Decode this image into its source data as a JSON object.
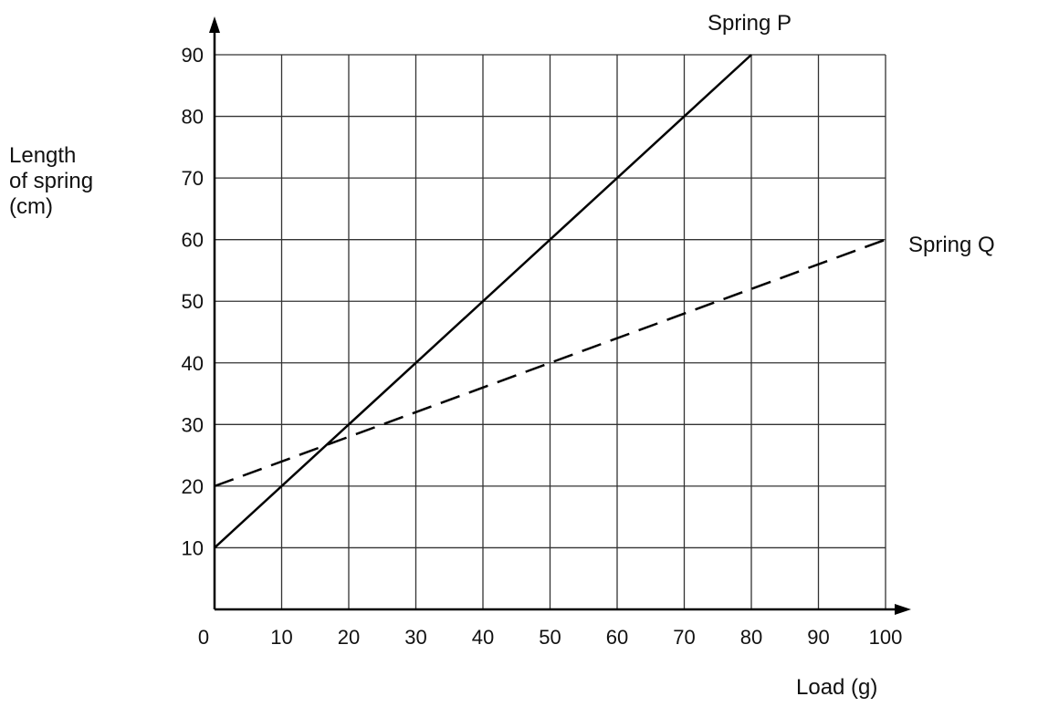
{
  "chart_data": {
    "type": "line",
    "title": "",
    "xlabel": "Load (g)",
    "ylabel_lines": [
      "Length",
      "of spring",
      "(cm)"
    ],
    "xlim": [
      0,
      100
    ],
    "ylim": [
      0,
      90
    ],
    "x_ticks": [
      0,
      10,
      20,
      30,
      40,
      50,
      60,
      70,
      80,
      90,
      100
    ],
    "y_ticks": [
      10,
      20,
      30,
      40,
      50,
      60,
      70,
      80,
      90
    ],
    "grid": true,
    "series": [
      {
        "name": "Spring P",
        "style": "solid",
        "color": "#000000",
        "x": [
          0,
          80
        ],
        "y": [
          10,
          90
        ]
      },
      {
        "name": "Spring Q",
        "style": "dashed",
        "color": "#000000",
        "x": [
          0,
          100
        ],
        "y": [
          20,
          60
        ]
      }
    ]
  }
}
